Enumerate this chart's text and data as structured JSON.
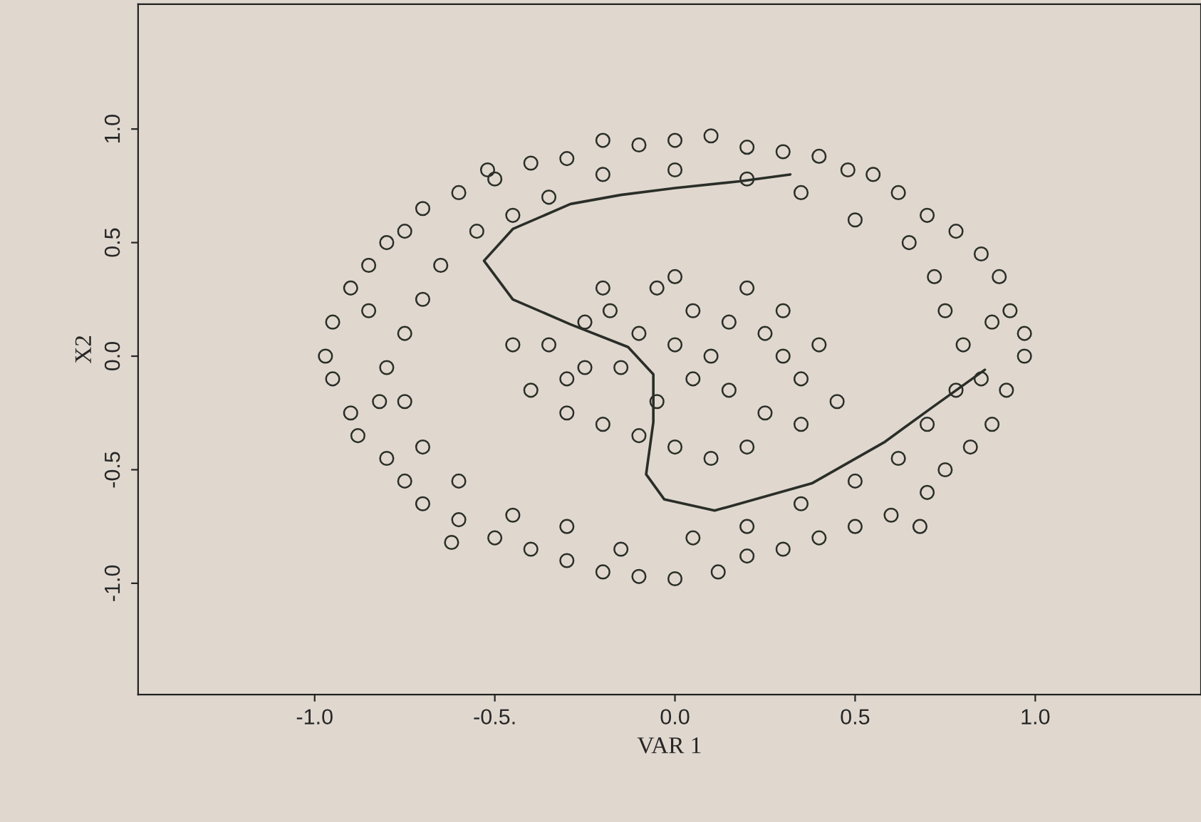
{
  "chart_data": {
    "type": "scatter",
    "xlabel": "VAR 1",
    "ylabel": "X2",
    "xlim": [
      -1.49,
      1.46
    ],
    "ylim": [
      -1.49,
      1.55
    ],
    "xticks": [
      {
        "value": -1,
        "label": "-1.0"
      },
      {
        "value": -0.5,
        "label": "-0.5."
      },
      {
        "value": 0,
        "label": "0.0"
      },
      0.5,
      {
        "value": 1,
        "label": "1.0"
      }
    ],
    "yticks": [
      {
        "value": -1,
        "label": "-1.0"
      },
      -0.5,
      {
        "value": 0,
        "label": "0.0"
      },
      0.5,
      {
        "value": 1,
        "label": "1.0"
      }
    ],
    "grid": false,
    "marker": "circle",
    "series": [
      {
        "color": "#2a2e28",
        "x": [
          -0.2,
          -0.1,
          0.0,
          0.1,
          0.2,
          0.3,
          0.4,
          -0.3,
          -0.4,
          -0.5,
          -0.6,
          -0.7,
          -0.75,
          -0.8,
          -0.85,
          -0.9,
          -0.95,
          -0.97,
          -0.95,
          -0.9,
          -0.88,
          -0.8,
          -0.75,
          -0.7,
          -0.6,
          -0.5,
          -0.4,
          -0.3,
          -0.2,
          -0.1,
          0.0,
          0.12,
          0.2,
          0.3,
          0.4,
          0.5,
          0.6,
          0.7,
          0.75,
          0.82,
          0.88,
          0.92,
          0.97,
          0.97,
          0.93,
          0.9,
          0.85,
          0.78,
          0.7,
          0.62,
          0.55,
          0.48,
          -0.35,
          -0.2,
          0.0,
          0.2,
          0.35,
          0.5,
          0.65,
          0.72,
          0.75,
          0.8,
          0.78,
          0.7,
          0.62,
          0.5,
          0.35,
          0.2,
          0.05,
          -0.15,
          -0.3,
          -0.45,
          -0.6,
          -0.7,
          -0.75,
          -0.8,
          -0.75,
          -0.7,
          -0.65,
          -0.55,
          -0.45,
          -0.85,
          -0.82,
          0.85,
          0.88,
          0.68,
          -0.52,
          -0.62,
          -0.35,
          -0.3,
          -0.25,
          -0.2,
          -0.18,
          -0.15,
          -0.1,
          -0.05,
          0.0,
          0.05,
          0.1,
          0.15,
          0.2,
          0.25,
          0.3,
          0.35,
          0.4,
          0.45,
          0.35,
          0.2,
          0.1,
          0.0,
          -0.1,
          -0.2,
          -0.3,
          -0.4,
          -0.45,
          0.05,
          -0.05,
          0.15,
          0.25,
          0.3,
          -0.25,
          0.0
        ],
        "values": [
          0.95,
          0.93,
          0.95,
          0.97,
          0.92,
          0.9,
          0.88,
          0.87,
          0.85,
          0.78,
          0.72,
          0.65,
          0.55,
          0.5,
          0.4,
          0.3,
          0.15,
          0.0,
          -0.1,
          -0.25,
          -0.35,
          -0.45,
          -0.55,
          -0.65,
          -0.72,
          -0.8,
          -0.85,
          -0.9,
          -0.95,
          -0.97,
          -0.98,
          -0.95,
          -0.88,
          -0.85,
          -0.8,
          -0.75,
          -0.7,
          -0.6,
          -0.5,
          -0.4,
          -0.3,
          -0.15,
          0.0,
          0.1,
          0.2,
          0.35,
          0.45,
          0.55,
          0.62,
          0.72,
          0.8,
          0.82,
          0.7,
          0.8,
          0.82,
          0.78,
          0.72,
          0.6,
          0.5,
          0.35,
          0.2,
          0.05,
          -0.15,
          -0.3,
          -0.45,
          -0.55,
          -0.65,
          -0.75,
          -0.8,
          -0.85,
          -0.75,
          -0.7,
          -0.55,
          -0.4,
          -0.2,
          -0.05,
          0.1,
          0.25,
          0.4,
          0.55,
          0.62,
          0.2,
          -0.2,
          -0.1,
          0.15,
          -0.75,
          0.82,
          -0.82,
          0.05,
          -0.1,
          0.15,
          0.3,
          0.2,
          -0.05,
          0.1,
          0.3,
          0.35,
          0.2,
          0.0,
          -0.15,
          0.3,
          0.1,
          0.2,
          -0.1,
          0.05,
          -0.2,
          -0.3,
          -0.4,
          -0.45,
          -0.4,
          -0.35,
          -0.3,
          -0.25,
          -0.15,
          0.05,
          -0.1,
          -0.2,
          0.15,
          -0.25,
          0.0,
          -0.05,
          0.05
        ]
      },
      {
        "type": "line",
        "color": "#2a2e28",
        "marker": "none",
        "line_style": "solid",
        "x": [
          0.32,
          0.18,
          0.0,
          -0.15,
          -0.29,
          -0.45,
          -0.53,
          -0.45,
          -0.29,
          -0.13,
          -0.06,
          -0.06,
          -0.08,
          -0.03,
          0.11,
          0.38,
          0.58,
          0.71,
          0.86
        ],
        "values": [
          0.8,
          0.77,
          0.74,
          0.71,
          0.67,
          0.56,
          0.42,
          0.25,
          0.14,
          0.04,
          -0.08,
          -0.29,
          -0.52,
          -0.63,
          -0.68,
          -0.56,
          -0.38,
          -0.23,
          -0.06
        ]
      }
    ]
  }
}
